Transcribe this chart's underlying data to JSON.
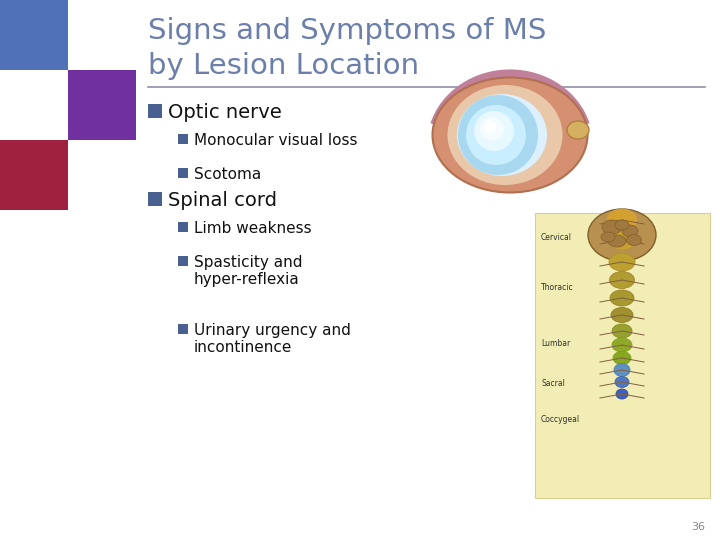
{
  "title_line1": "Signs and Symptoms of MS",
  "title_line2": "by Lesion Location",
  "title_color": "#6b7faa",
  "title_fontsize": 21,
  "background_color": "#ffffff",
  "header_rule_color": "#9090a8",
  "bullet_color": "#4a6090",
  "section1_header": "Optic nerve",
  "section1_items": [
    "Monocular visual loss",
    "Scotoma"
  ],
  "section2_header": "Spinal cord",
  "section2_items": [
    "Limb weakness",
    "Spasticity and\nhyper-reflexia",
    "Urinary urgency and\nincontinence"
  ],
  "section_header_fontsize": 14,
  "item_fontsize": 11,
  "text_color": "#111111",
  "corner_blue": "#5070b8",
  "corner_purple": "#7030a0",
  "corner_red": "#a02040",
  "page_number": "36",
  "page_number_fontsize": 8
}
